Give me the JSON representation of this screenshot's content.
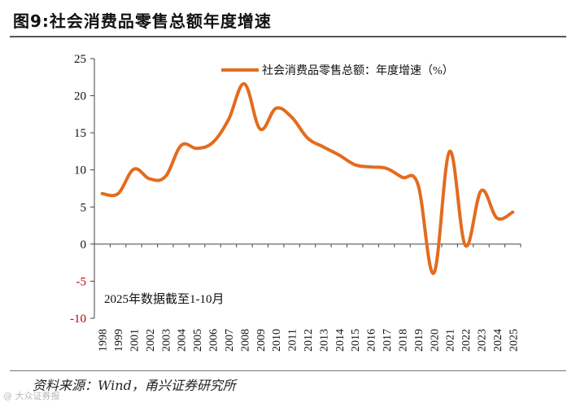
{
  "figure": {
    "title": "图9:社会消费品零售总额年度增速",
    "source": "资料来源：Wind，甬兴证券研究所",
    "watermark": "@ 大众证券报"
  },
  "chart_data": {
    "type": "line",
    "title": "图9:社会消费品零售总额年度增速",
    "xlabel": "",
    "ylabel": "",
    "ylim": [
      -10,
      25
    ],
    "yticks": [
      -10,
      -5,
      0,
      5,
      10,
      15,
      20,
      25
    ],
    "x": [
      "1998",
      "1999",
      "2001",
      "2002",
      "2003",
      "2004",
      "2005",
      "2006",
      "2007",
      "2008",
      "2009",
      "2010",
      "2011",
      "2012",
      "2013",
      "2014",
      "2015",
      "2016",
      "2017",
      "2018",
      "2019",
      "2020",
      "2021",
      "2022",
      "2023",
      "2024",
      "2025"
    ],
    "series": [
      {
        "name": "社会消费品零售总额：年度增速（%）",
        "color": "#e36c1e",
        "values": [
          6.8,
          6.8,
          10.1,
          8.8,
          9.1,
          13.3,
          12.9,
          13.7,
          16.8,
          21.6,
          15.5,
          18.3,
          17.1,
          14.3,
          13.1,
          12.0,
          10.7,
          10.4,
          10.2,
          9.0,
          8.0,
          -3.9,
          12.5,
          -0.2,
          7.2,
          3.5,
          4.3
        ]
      }
    ],
    "legend_position": "top-right",
    "grid": false,
    "annotation": "2025年数据截至1-10月",
    "colors": {
      "line": "#e36c1e",
      "negative_tick": "#c00000",
      "axis": "#444444",
      "text": "#111111"
    }
  }
}
